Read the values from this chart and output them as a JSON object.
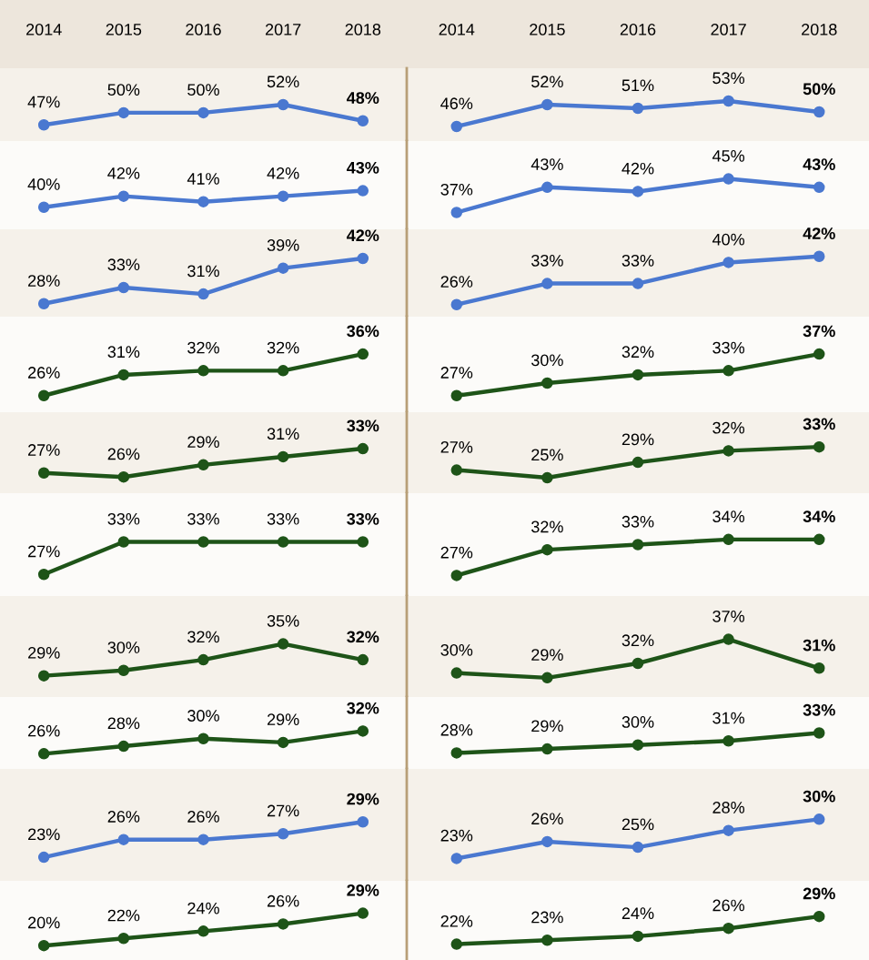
{
  "chart_data": [
    {
      "type": "line",
      "categories": [
        "2014",
        "2015",
        "2016",
        "2017",
        "2018"
      ],
      "tick_labels": "x",
      "marker": "circle",
      "series": [
        {
          "color": "#4a78d0",
          "values": [
            47,
            50,
            50,
            52,
            48
          ],
          "value_labels": [
            "47%",
            "50%",
            "50%",
            "52%",
            "48%"
          ]
        }
      ]
    },
    {
      "type": "line",
      "categories": [
        "2014",
        "2015",
        "2016",
        "2017",
        "2018"
      ],
      "tick_labels": "x",
      "marker": "circle",
      "series": [
        {
          "color": "#4a78d0",
          "values": [
            46,
            52,
            51,
            53,
            50
          ],
          "value_labels": [
            "46%",
            "52%",
            "51%",
            "53%",
            "50%"
          ]
        }
      ]
    },
    {
      "type": "line",
      "categories": [
        "2014",
        "2015",
        "2016",
        "2017",
        "2018"
      ],
      "tick_labels": false,
      "marker": "circle",
      "series": [
        {
          "color": "#4a78d0",
          "values": [
            40,
            42,
            41,
            42,
            43
          ],
          "value_labels": [
            "40%",
            "42%",
            "41%",
            "42%",
            "43%"
          ]
        }
      ]
    },
    {
      "type": "line",
      "categories": [
        "2014",
        "2015",
        "2016",
        "2017",
        "2018"
      ],
      "tick_labels": false,
      "marker": "circle",
      "series": [
        {
          "color": "#4a78d0",
          "values": [
            37,
            43,
            42,
            45,
            43
          ],
          "value_labels": [
            "37%",
            "43%",
            "42%",
            "45%",
            "43%"
          ]
        }
      ]
    },
    {
      "type": "line",
      "categories": [
        "2014",
        "2015",
        "2016",
        "2017",
        "2018"
      ],
      "tick_labels": false,
      "marker": "circle",
      "series": [
        {
          "color": "#4a78d0",
          "values": [
            28,
            33,
            31,
            39,
            42
          ],
          "value_labels": [
            "28%",
            "33%",
            "31%",
            "39%",
            "42%"
          ]
        }
      ]
    },
    {
      "type": "line",
      "categories": [
        "2014",
        "2015",
        "2016",
        "2017",
        "2018"
      ],
      "tick_labels": false,
      "marker": "circle",
      "series": [
        {
          "color": "#4a78d0",
          "values": [
            26,
            33,
            33,
            40,
            42
          ],
          "value_labels": [
            "26%",
            "33%",
            "33%",
            "40%",
            "42%"
          ]
        }
      ]
    },
    {
      "type": "line",
      "categories": [
        "2014",
        "2015",
        "2016",
        "2017",
        "2018"
      ],
      "tick_labels": false,
      "marker": "circle",
      "series": [
        {
          "color": "#1e5418",
          "values": [
            26,
            31,
            32,
            32,
            36
          ],
          "value_labels": [
            "26%",
            "31%",
            "32%",
            "32%",
            "36%"
          ]
        }
      ]
    },
    {
      "type": "line",
      "categories": [
        "2014",
        "2015",
        "2016",
        "2017",
        "2018"
      ],
      "tick_labels": false,
      "marker": "circle",
      "series": [
        {
          "color": "#1e5418",
          "values": [
            27,
            30,
            32,
            33,
            37
          ],
          "value_labels": [
            "27%",
            "30%",
            "32%",
            "33%",
            "37%"
          ]
        }
      ]
    },
    {
      "type": "line",
      "categories": [
        "2014",
        "2015",
        "2016",
        "2017",
        "2018"
      ],
      "tick_labels": false,
      "marker": "circle",
      "series": [
        {
          "color": "#1e5418",
          "values": [
            27,
            26,
            29,
            31,
            33
          ],
          "value_labels": [
            "27%",
            "26%",
            "29%",
            "31%",
            "33%"
          ]
        }
      ]
    },
    {
      "type": "line",
      "categories": [
        "2014",
        "2015",
        "2016",
        "2017",
        "2018"
      ],
      "tick_labels": false,
      "marker": "circle",
      "series": [
        {
          "color": "#1e5418",
          "values": [
            27,
            25,
            29,
            32,
            33
          ],
          "value_labels": [
            "27%",
            "25%",
            "29%",
            "32%",
            "33%"
          ]
        }
      ]
    },
    {
      "type": "line",
      "categories": [
        "2014",
        "2015",
        "2016",
        "2017",
        "2018"
      ],
      "tick_labels": false,
      "marker": "circle",
      "series": [
        {
          "color": "#1e5418",
          "values": [
            27,
            33,
            33,
            33,
            33
          ],
          "value_labels": [
            "27%",
            "33%",
            "33%",
            "33%",
            "33%"
          ]
        }
      ]
    },
    {
      "type": "line",
      "categories": [
        "2014",
        "2015",
        "2016",
        "2017",
        "2018"
      ],
      "tick_labels": false,
      "marker": "circle",
      "series": [
        {
          "color": "#1e5418",
          "values": [
            27,
            32,
            33,
            34,
            34
          ],
          "value_labels": [
            "27%",
            "32%",
            "33%",
            "34%",
            "34%"
          ]
        }
      ]
    },
    {
      "type": "line",
      "categories": [
        "2014",
        "2015",
        "2016",
        "2017",
        "2018"
      ],
      "tick_labels": false,
      "marker": "circle",
      "series": [
        {
          "color": "#1e5418",
          "values": [
            29,
            30,
            32,
            35,
            32
          ],
          "value_labels": [
            "29%",
            "30%",
            "32%",
            "35%",
            "32%"
          ]
        }
      ]
    },
    {
      "type": "line",
      "categories": [
        "2014",
        "2015",
        "2016",
        "2017",
        "2018"
      ],
      "tick_labels": false,
      "marker": "circle",
      "series": [
        {
          "color": "#1e5418",
          "values": [
            30,
            29,
            32,
            37,
            31
          ],
          "value_labels": [
            "30%",
            "29%",
            "32%",
            "37%",
            "31%"
          ]
        }
      ]
    },
    {
      "type": "line",
      "categories": [
        "2014",
        "2015",
        "2016",
        "2017",
        "2018"
      ],
      "tick_labels": false,
      "marker": "circle",
      "series": [
        {
          "color": "#1e5418",
          "values": [
            26,
            28,
            30,
            29,
            32
          ],
          "value_labels": [
            "26%",
            "28%",
            "30%",
            "29%",
            "32%"
          ]
        }
      ]
    },
    {
      "type": "line",
      "categories": [
        "2014",
        "2015",
        "2016",
        "2017",
        "2018"
      ],
      "tick_labels": false,
      "marker": "circle",
      "series": [
        {
          "color": "#1e5418",
          "values": [
            28,
            29,
            30,
            31,
            33
          ],
          "value_labels": [
            "28%",
            "29%",
            "30%",
            "31%",
            "33%"
          ]
        }
      ]
    },
    {
      "type": "line",
      "categories": [
        "2014",
        "2015",
        "2016",
        "2017",
        "2018"
      ],
      "tick_labels": false,
      "marker": "circle",
      "series": [
        {
          "color": "#4a78d0",
          "values": [
            23,
            26,
            26,
            27,
            29
          ],
          "value_labels": [
            "23%",
            "26%",
            "26%",
            "27%",
            "29%"
          ]
        }
      ]
    },
    {
      "type": "line",
      "categories": [
        "2014",
        "2015",
        "2016",
        "2017",
        "2018"
      ],
      "tick_labels": false,
      "marker": "circle",
      "series": [
        {
          "color": "#4a78d0",
          "values": [
            23,
            26,
            25,
            28,
            30
          ],
          "value_labels": [
            "23%",
            "26%",
            "25%",
            "28%",
            "30%"
          ]
        }
      ]
    },
    {
      "type": "line",
      "categories": [
        "2014",
        "2015",
        "2016",
        "2017",
        "2018"
      ],
      "tick_labels": false,
      "marker": "circle",
      "series": [
        {
          "color": "#1e5418",
          "values": [
            20,
            22,
            24,
            26,
            29
          ],
          "value_labels": [
            "20%",
            "22%",
            "24%",
            "26%",
            "29%"
          ]
        }
      ]
    },
    {
      "type": "line",
      "categories": [
        "2014",
        "2015",
        "2016",
        "2017",
        "2018"
      ],
      "tick_labels": false,
      "marker": "circle",
      "series": [
        {
          "color": "#1e5418",
          "values": [
            22,
            23,
            24,
            26,
            29
          ],
          "value_labels": [
            "22%",
            "23%",
            "24%",
            "26%",
            "29%"
          ]
        }
      ]
    }
  ]
}
